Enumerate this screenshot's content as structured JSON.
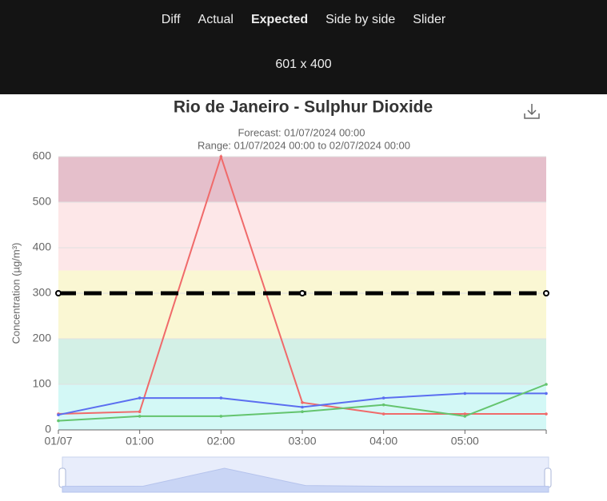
{
  "toolbar": {
    "tabs": [
      "Diff",
      "Actual",
      "Expected",
      "Side by side",
      "Slider"
    ],
    "active": 2,
    "size": "601 x 400"
  },
  "chart_data": {
    "type": "line",
    "title": "Rio de Janeiro - Sulphur Dioxide",
    "subtitle": [
      "Forecast: 01/07/2024 00:00",
      "Range: 01/07/2024 00:00 to 02/07/2024 00:00"
    ],
    "y_label": "Concentration (µg/m³)",
    "categories": [
      "01/07",
      "01:00",
      "02:00",
      "03:00",
      "04:00",
      "05:00",
      null
    ],
    "series": [
      {
        "color": "#f06a6a",
        "values": [
          35,
          40,
          600,
          60,
          35,
          35,
          35
        ]
      },
      {
        "color": "#5b6ef0",
        "values": [
          33,
          70,
          70,
          50,
          70,
          80,
          80
        ]
      },
      {
        "color": "#64c46e",
        "values": [
          20,
          30,
          30,
          40,
          55,
          30,
          100
        ]
      }
    ],
    "ylim": [
      0,
      600
    ],
    "yticks": [
      0,
      100,
      200,
      300,
      400,
      500,
      600
    ],
    "grid": true,
    "bands": [
      {
        "from": 0,
        "to": 100,
        "color": "#d3f8f6"
      },
      {
        "from": 100,
        "to": 200,
        "color": "#d3f0e6"
      },
      {
        "from": 200,
        "to": 350,
        "color": "#faf7d3"
      },
      {
        "from": 350,
        "to": 500,
        "color": "#fde7e8"
      },
      {
        "from": 500,
        "to": 600,
        "color": "#e5bfcb"
      }
    ],
    "threshold": {
      "value": 300,
      "color": "#000000"
    }
  }
}
